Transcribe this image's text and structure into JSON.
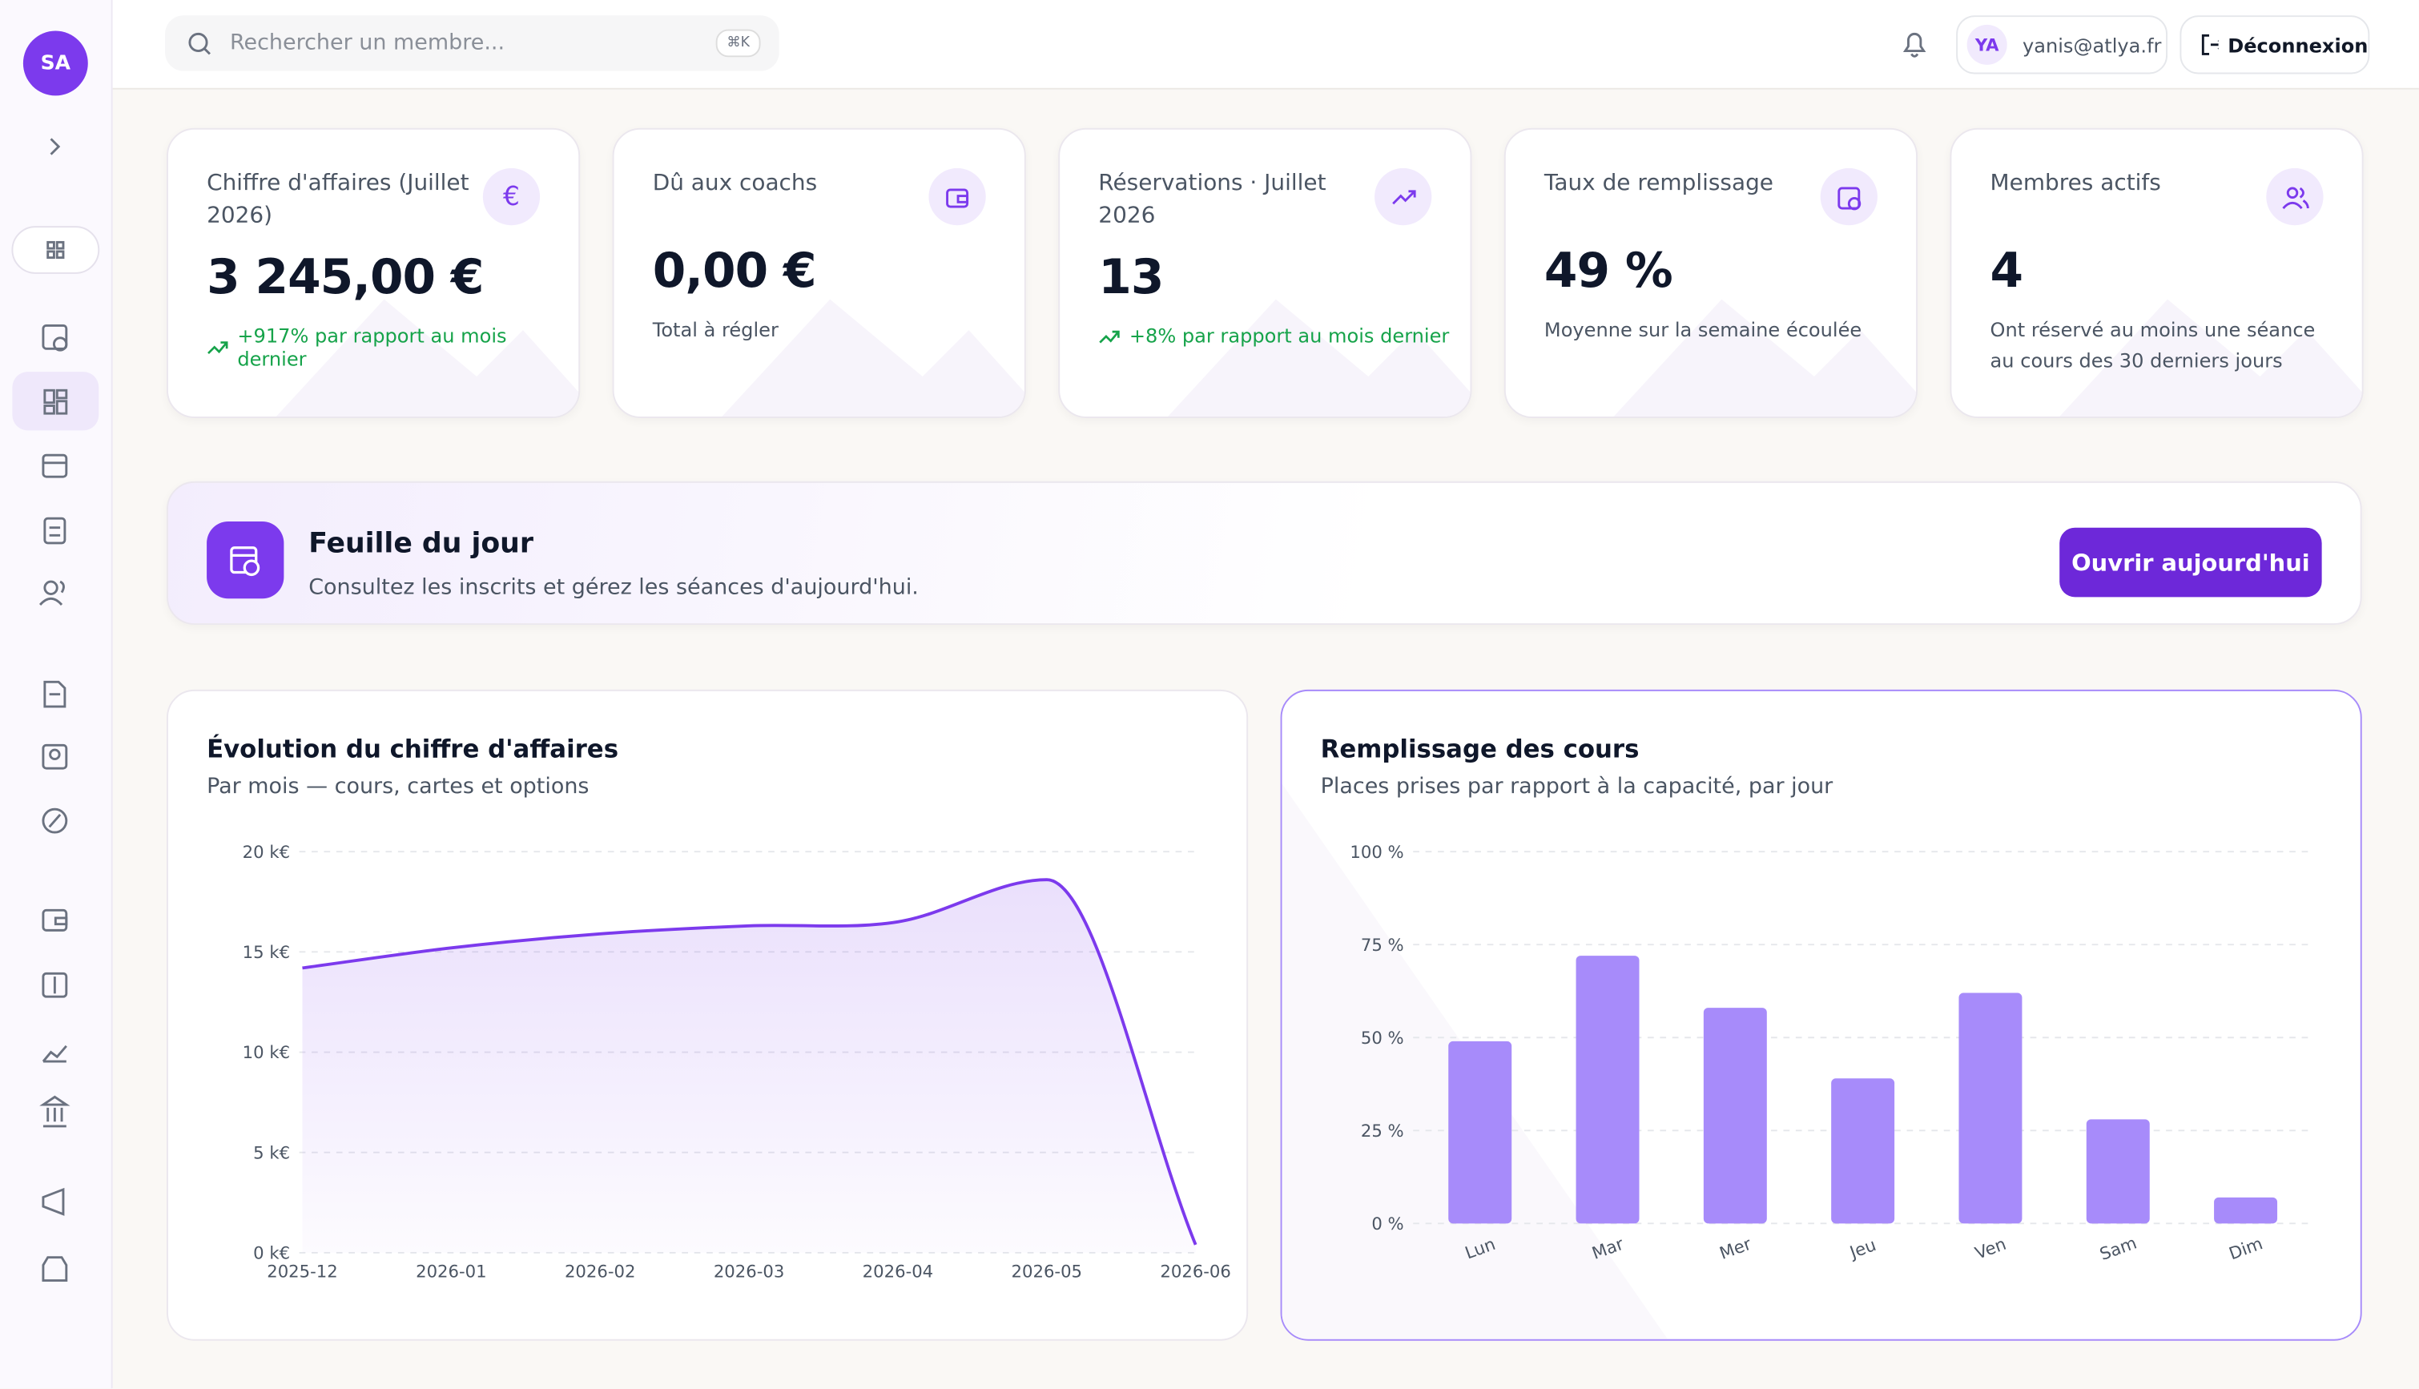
{
  "sidebar": {
    "avatar": "SA"
  },
  "topbar": {
    "search_placeholder": "Rechercher un membre...",
    "shortcut": "⌘K",
    "user_initials": "YA",
    "user_email": "yanis@atlya.fr",
    "logout": "Déconnexion"
  },
  "cards": [
    {
      "title": "Chiffre d'affaires (Juillet 2026)",
      "icon_text": "€",
      "value": "3 245,00 €",
      "trend": "+917% par rapport au mois dernier"
    },
    {
      "title": "Dû aux coachs",
      "value": "0,00 €",
      "note": "Total à régler"
    },
    {
      "title": "Réservations · Juillet 2026",
      "value": "13",
      "trend": "+8% par rapport au mois dernier"
    },
    {
      "title": "Taux de remplissage",
      "value": "49 %",
      "note": "Moyenne sur la semaine écoulée"
    },
    {
      "title": "Membres actifs",
      "value": "4",
      "note": "Ont réservé au moins une séance au cours des 30 derniers jours"
    }
  ],
  "banner": {
    "title": "Feuille du jour",
    "text": "Consultez les inscrits et gérez les séances d'aujourd'hui.",
    "button": "Ouvrir aujourd'hui"
  },
  "chart_data": [
    {
      "type": "line",
      "title": "Évolution du chiffre d'affaires",
      "subtitle": "Par mois — cours, cartes et options",
      "categories": [
        "2025-12",
        "2026-01",
        "2026-02",
        "2026-03",
        "2026-04",
        "2026-05",
        "2026-06"
      ],
      "values": [
        14.2,
        15.2,
        15.9,
        16.3,
        16.5,
        18.6,
        0.4
      ],
      "color": "#7c3aed",
      "ylim": [
        0,
        20
      ],
      "yticks": [
        {
          "value": 0,
          "label": "0 k€"
        },
        {
          "value": 5,
          "label": "5 k€"
        },
        {
          "value": 10,
          "label": "10 k€"
        },
        {
          "value": 15,
          "label": "15 k€"
        },
        {
          "value": 20,
          "label": "20 k€"
        }
      ],
      "grid": true
    },
    {
      "type": "bar",
      "title": "Remplissage des cours",
      "subtitle": "Places prises par rapport à la capacité, par jour",
      "categories": [
        "Lun",
        "Mar",
        "Mer",
        "Jeu",
        "Ven",
        "Sam",
        "Dim"
      ],
      "values": [
        49,
        72,
        58,
        39,
        62,
        28,
        7
      ],
      "color": "#a78bfa",
      "ylim": [
        0,
        100
      ],
      "yticks": [
        {
          "value": 0,
          "label": "0 %"
        },
        {
          "value": 25,
          "label": "25 %"
        },
        {
          "value": 50,
          "label": "50 %"
        },
        {
          "value": 75,
          "label": "75 %"
        },
        {
          "value": 100,
          "label": "100 %"
        }
      ],
      "grid": true
    }
  ]
}
